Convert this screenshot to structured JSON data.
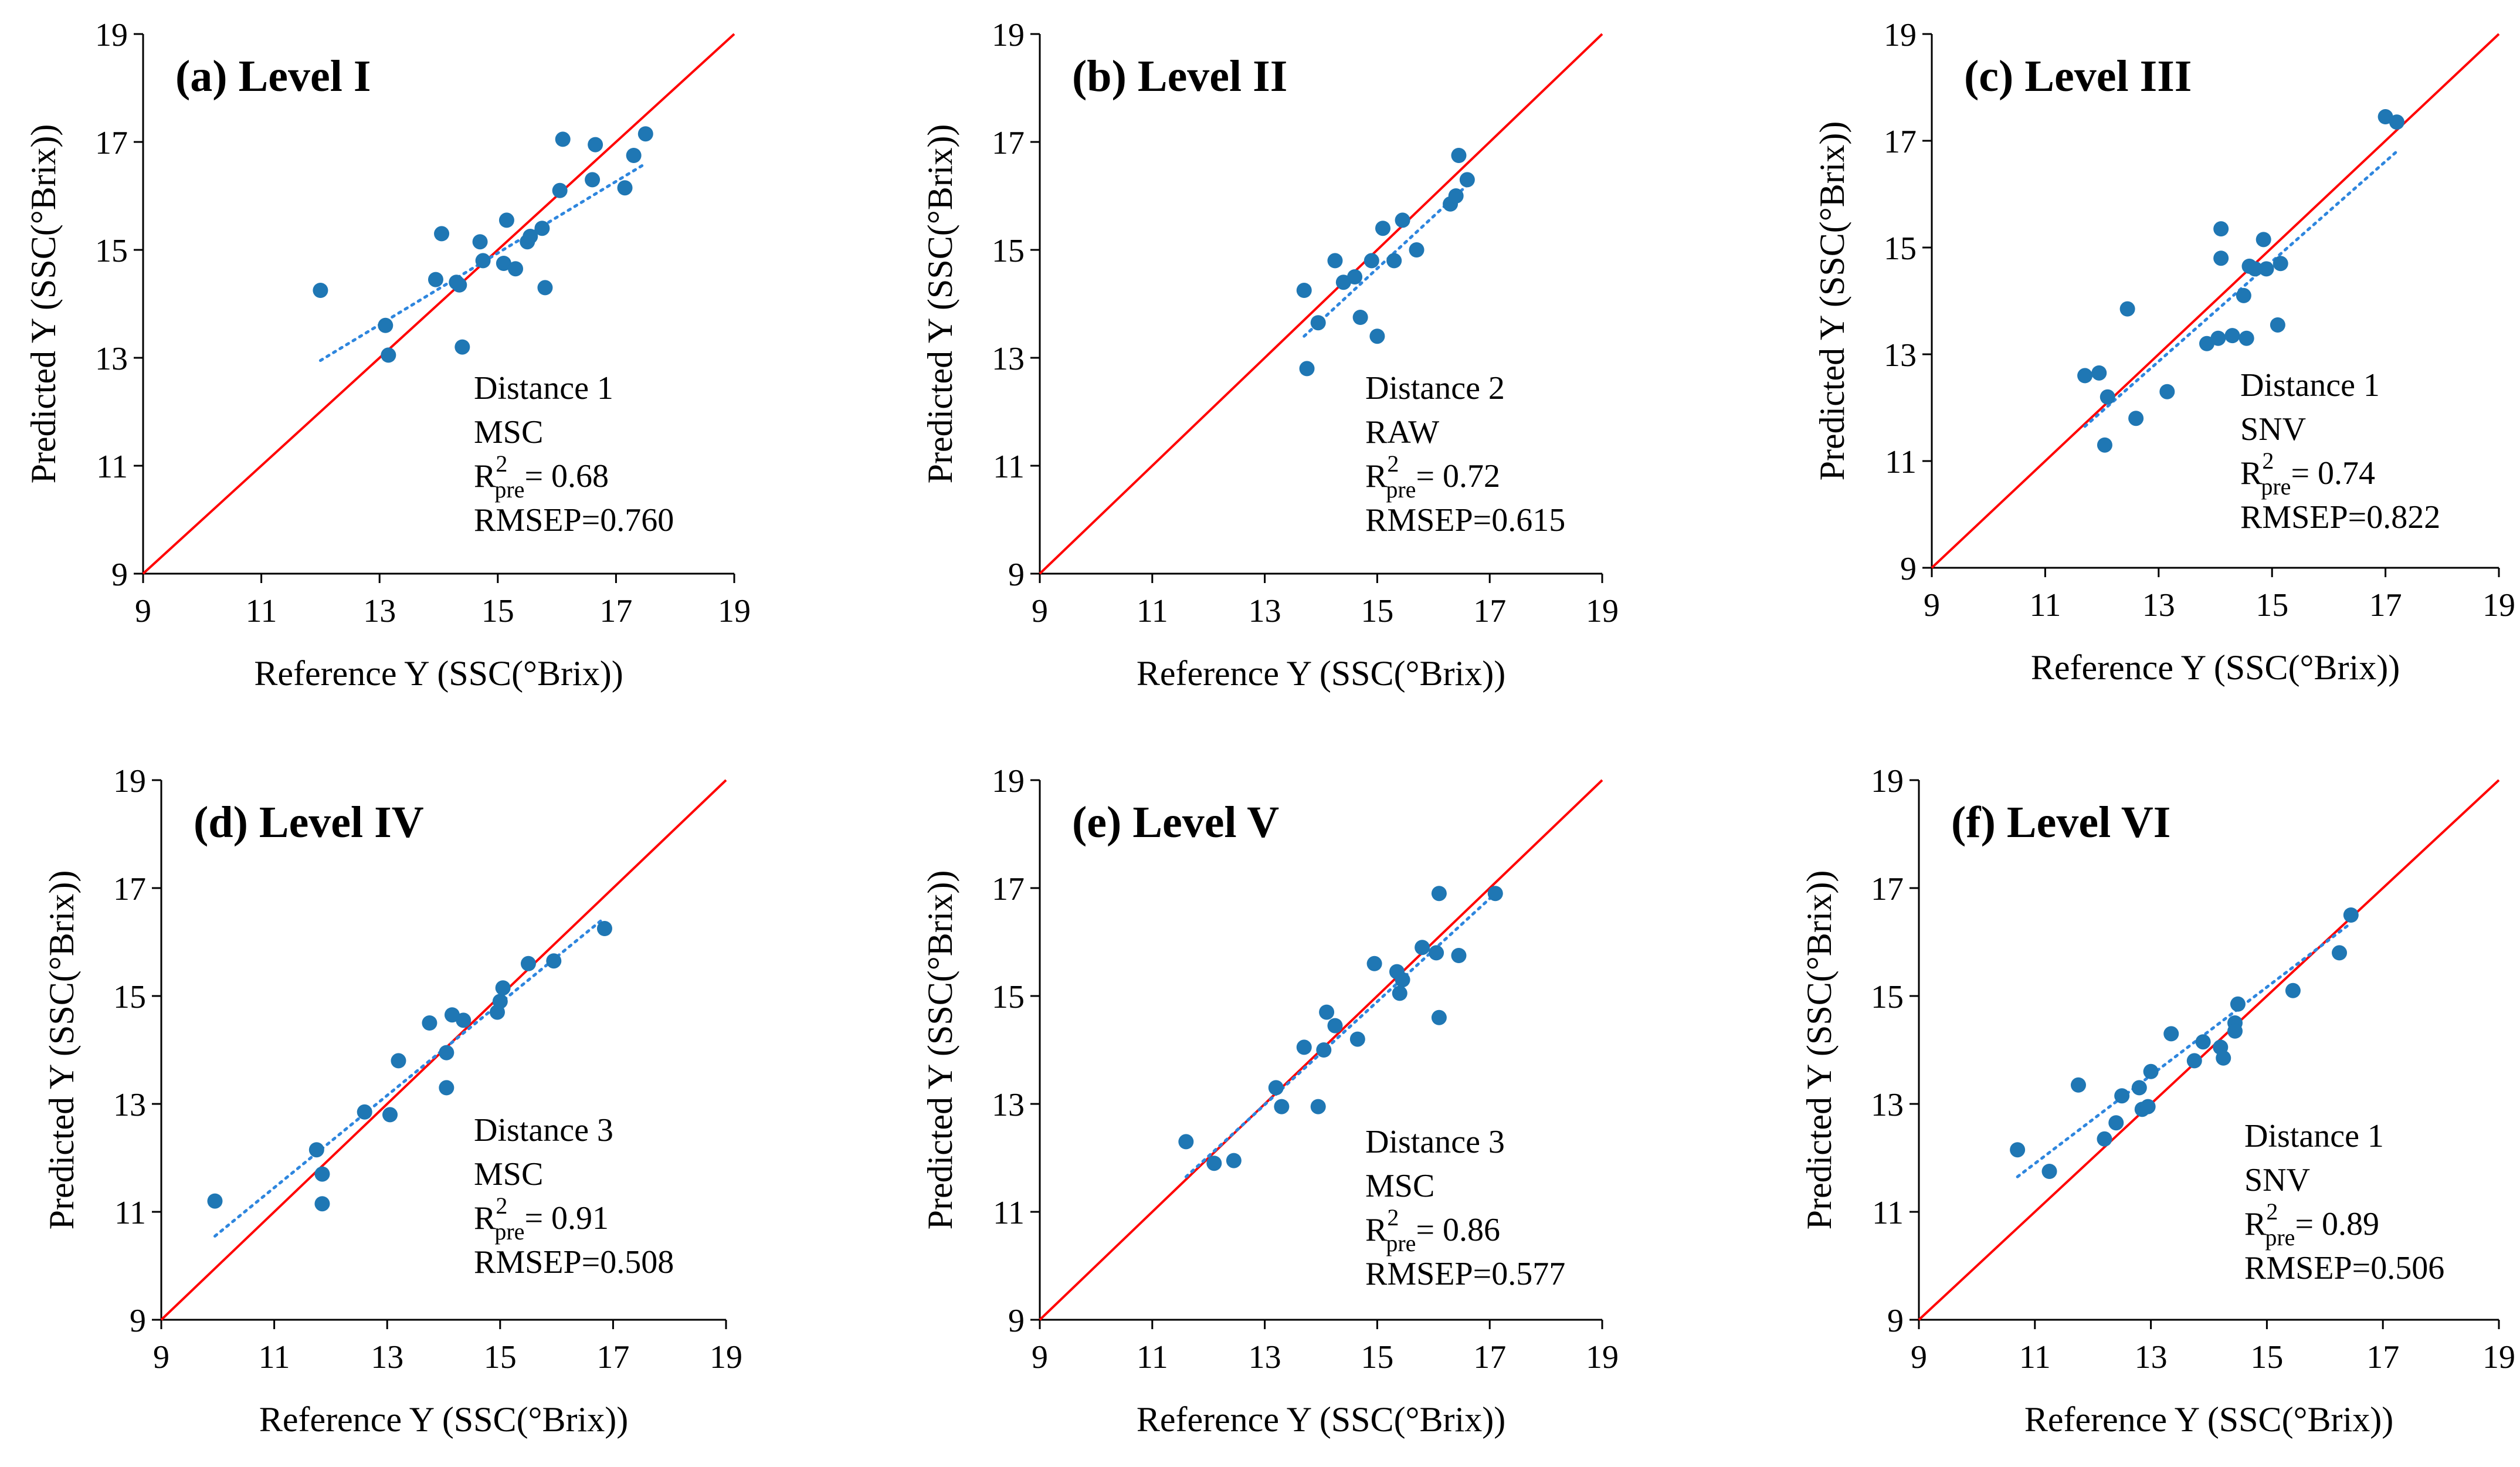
{
  "figure": {
    "colors": {
      "points": "#1F77B4",
      "identity_line": "#FF0000",
      "trend_line": "#2E86DE",
      "axes": "#000000"
    }
  },
  "chart_data": [
    {
      "type": "scatter",
      "title": "(a) Level I",
      "xlabel": "Reference Y (SSC(°Brix))",
      "ylabel": "Predicted Y (SSC(°Brix))",
      "xlim": [
        9,
        19
      ],
      "ylim": [
        9,
        19
      ],
      "xticks": [
        "9",
        "11",
        "13",
        "15",
        "17",
        "19"
      ],
      "yticks": [
        "9",
        "11",
        "13",
        "15",
        "17",
        "19"
      ],
      "annotation": {
        "distance": "Distance  1",
        "preprocessing": "MSC",
        "r2_main": "R",
        "r2_sup": "2",
        "r2_sub": "pre",
        "r2_value": "= 0.68",
        "rmsep": "RMSEP=0.760"
      },
      "x": [
        12.0,
        13.1,
        13.15,
        13.95,
        14.05,
        14.3,
        14.35,
        14.4,
        14.7,
        14.75,
        15.1,
        15.15,
        15.3,
        15.5,
        15.55,
        15.75,
        15.8,
        16.05,
        16.1,
        16.6,
        16.65,
        17.15,
        17.3,
        17.5
      ],
      "y": [
        14.25,
        13.6,
        13.05,
        14.45,
        15.3,
        14.4,
        14.35,
        13.2,
        15.15,
        14.8,
        14.75,
        15.55,
        14.65,
        15.15,
        15.25,
        15.4,
        14.3,
        16.1,
        17.05,
        16.3,
        16.95,
        16.15,
        16.75,
        17.15
      ],
      "trend": {
        "x": [
          12.0,
          17.5
        ],
        "y": [
          12.95,
          16.6
        ]
      }
    },
    {
      "type": "scatter",
      "title": "(b) Level II",
      "xlabel": "Reference Y (SSC(°Brix))",
      "ylabel": "Predicted Y (SSC(°Brix))",
      "xlim": [
        9,
        19
      ],
      "ylim": [
        9,
        19
      ],
      "xticks": [
        "9",
        "11",
        "13",
        "15",
        "17",
        "19"
      ],
      "yticks": [
        "9",
        "11",
        "13",
        "15",
        "17",
        "19"
      ],
      "annotation": {
        "distance": "Distance  2",
        "preprocessing": "RAW",
        "r2_main": "R",
        "r2_sup": "2",
        "r2_sub": "pre",
        "r2_value": "= 0.72",
        "rmsep": "RMSEP=0.615"
      },
      "x": [
        13.7,
        13.75,
        13.95,
        14.25,
        14.4,
        14.6,
        14.7,
        14.9,
        15.0,
        15.1,
        15.3,
        15.45,
        15.7,
        16.3,
        16.4,
        16.45,
        16.6
      ],
      "y": [
        14.25,
        12.8,
        13.65,
        14.8,
        14.4,
        14.5,
        13.75,
        14.8,
        13.4,
        15.4,
        14.8,
        15.55,
        15.0,
        15.85,
        16.0,
        16.75,
        16.3
      ],
      "trend": {
        "x": [
          13.7,
          16.6
        ],
        "y": [
          13.4,
          16.2
        ]
      }
    },
    {
      "type": "scatter",
      "title": "(c) Level III",
      "xlabel": "Reference Y (SSC(°Brix))",
      "ylabel": "Predicted Y (SSC(°Brix))",
      "xlim": [
        9,
        19
      ],
      "ylim": [
        9,
        19
      ],
      "xticks": [
        "9",
        "11",
        "13",
        "15",
        "17",
        "19"
      ],
      "yticks": [
        "9",
        "11",
        "13",
        "15",
        "17",
        "19"
      ],
      "annotation": {
        "distance": "Distance  1",
        "preprocessing": "SNV",
        "r2_main": "R",
        "r2_sup": "2",
        "r2_sub": "pre",
        "r2_value": "= 0.74",
        "rmsep": "RMSEP=0.822"
      },
      "x": [
        11.7,
        11.95,
        12.05,
        12.1,
        12.45,
        12.6,
        13.15,
        13.85,
        14.05,
        14.1,
        14.1,
        14.3,
        14.5,
        14.55,
        14.6,
        14.7,
        14.85,
        14.9,
        15.1,
        15.15,
        17.0,
        17.2
      ],
      "y": [
        12.6,
        12.65,
        11.3,
        12.2,
        13.85,
        11.8,
        12.3,
        13.2,
        13.3,
        14.8,
        15.35,
        13.35,
        14.1,
        13.3,
        14.65,
        14.6,
        15.15,
        14.6,
        13.55,
        14.7,
        17.45,
        17.35
      ],
      "trend": {
        "x": [
          11.7,
          17.2
        ],
        "y": [
          11.65,
          16.8
        ]
      }
    },
    {
      "type": "scatter",
      "title": "(d) Level IV",
      "xlabel": "Reference Y (SSC(°Brix))",
      "ylabel": "Predicted Y (SSC(°Brix))",
      "xlim": [
        9,
        19
      ],
      "ylim": [
        9,
        19
      ],
      "xticks": [
        "9",
        "11",
        "13",
        "15",
        "17",
        "19"
      ],
      "yticks": [
        "9",
        "11",
        "13",
        "15",
        "17",
        "19"
      ],
      "annotation": {
        "distance": "Distance  3",
        "preprocessing": "MSC",
        "r2_main": "R",
        "r2_sup": "2",
        "r2_sub": "pre",
        "r2_value": "= 0.91",
        "rmsep": "RMSEP=0.508"
      },
      "x": [
        9.95,
        11.75,
        11.85,
        11.85,
        12.6,
        13.05,
        13.2,
        13.75,
        14.05,
        14.05,
        14.15,
        14.35,
        14.95,
        15.0,
        15.05,
        15.5,
        15.95,
        16.85
      ],
      "y": [
        11.2,
        12.15,
        11.7,
        11.15,
        12.85,
        12.8,
        13.8,
        14.5,
        13.3,
        13.95,
        14.65,
        14.55,
        14.7,
        14.9,
        15.15,
        15.6,
        15.65,
        16.25
      ],
      "trend": {
        "x": [
          9.95,
          16.85
        ],
        "y": [
          10.55,
          16.45
        ]
      }
    },
    {
      "type": "scatter",
      "title": "(e) Level V",
      "xlabel": "Reference Y (SSC(°Brix))",
      "ylabel": "Predicted Y (SSC(°Brix))",
      "xlim": [
        9,
        19
      ],
      "ylim": [
        9,
        19
      ],
      "xticks": [
        "9",
        "11",
        "13",
        "15",
        "17",
        "19"
      ],
      "yticks": [
        "9",
        "11",
        "13",
        "15",
        "17",
        "19"
      ],
      "annotation": {
        "distance": "Distance  3",
        "preprocessing": "MSC",
        "r2_main": "R",
        "r2_sup": "2",
        "r2_sub": "pre",
        "r2_value": "= 0.86",
        "rmsep": "RMSEP=0.577"
      },
      "x": [
        11.6,
        12.1,
        12.45,
        13.2,
        13.3,
        13.7,
        13.95,
        14.05,
        14.1,
        14.25,
        14.65,
        14.95,
        15.35,
        15.4,
        15.45,
        15.8,
        16.05,
        16.1,
        16.1,
        16.45,
        17.1
      ],
      "y": [
        12.3,
        11.9,
        11.95,
        13.3,
        12.95,
        14.05,
        12.95,
        14.0,
        14.7,
        14.45,
        14.2,
        15.6,
        15.45,
        15.05,
        15.3,
        15.9,
        15.8,
        16.9,
        14.6,
        15.75,
        16.9
      ],
      "trend": {
        "x": [
          11.6,
          17.1
        ],
        "y": [
          11.65,
          16.9
        ]
      }
    },
    {
      "type": "scatter",
      "title": "(f) Level VI",
      "xlabel": "Reference Y (SSC(°Brix))",
      "ylabel": "Predicted Y (SSC(°Brix))",
      "xlim": [
        9,
        19
      ],
      "ylim": [
        9,
        19
      ],
      "xticks": [
        "9",
        "11",
        "13",
        "15",
        "17",
        "19"
      ],
      "yticks": [
        "9",
        "11",
        "13",
        "15",
        "17",
        "19"
      ],
      "annotation": {
        "distance": "Distance  1",
        "preprocessing": "SNV",
        "r2_main": "R",
        "r2_sup": "2",
        "r2_sub": "pre",
        "r2_value": "= 0.89",
        "rmsep": "RMSEP=0.506"
      },
      "x": [
        10.7,
        11.25,
        11.75,
        12.2,
        12.4,
        12.5,
        12.8,
        12.85,
        12.95,
        13.0,
        13.35,
        13.75,
        13.9,
        14.2,
        14.25,
        14.45,
        14.45,
        14.5,
        15.45,
        16.25,
        16.45
      ],
      "y": [
        12.15,
        11.75,
        13.35,
        12.35,
        12.65,
        13.15,
        13.3,
        12.9,
        12.95,
        13.6,
        14.3,
        13.8,
        14.15,
        14.05,
        13.85,
        14.5,
        14.35,
        14.85,
        15.1,
        15.8,
        16.5
      ],
      "trend": {
        "x": [
          10.7,
          16.45
        ],
        "y": [
          11.65,
          16.35
        ]
      }
    }
  ]
}
